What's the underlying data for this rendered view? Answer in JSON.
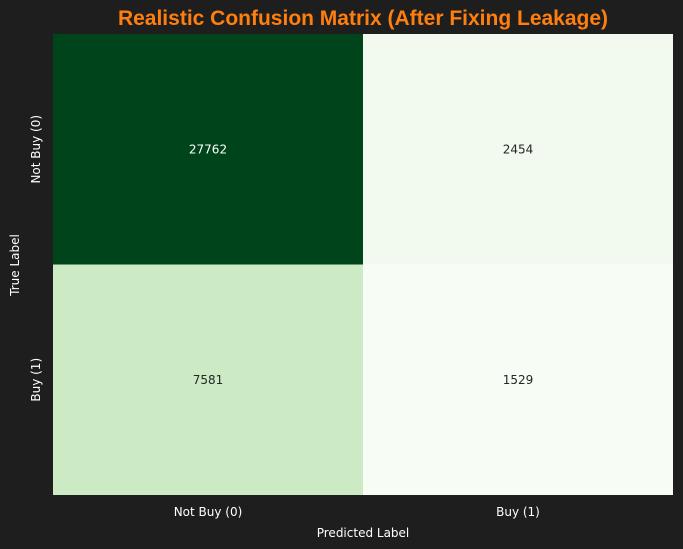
{
  "chart_data": {
    "type": "heatmap",
    "title": "Realistic Confusion Matrix (After Fixing Leakage)",
    "xlabel": "Predicted Label",
    "ylabel": "True Label",
    "x_categories": [
      "Not Buy (0)",
      "Buy (1)"
    ],
    "y_categories": [
      "Not Buy (0)",
      "Buy (1)"
    ],
    "values": [
      [
        27762,
        2454
      ],
      [
        7581,
        1529
      ]
    ],
    "colormap": "Greens",
    "colorbar": false,
    "colors": {
      "background": "#1e1e1e",
      "title": "#ff7f0e",
      "text": "#ffffff",
      "cell_text_dark_bg": "#ffffff",
      "cell_text_light_bg": "#262626"
    }
  }
}
